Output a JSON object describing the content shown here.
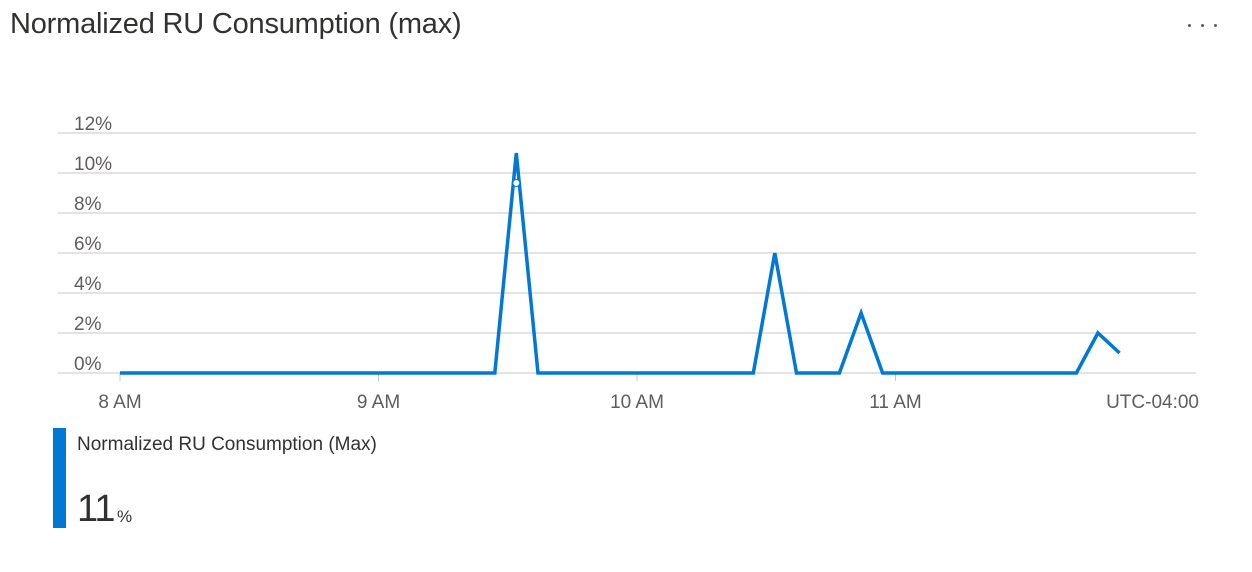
{
  "header": {
    "title": "Normalized RU Consumption (max)",
    "menu_icon": "more-horizontal-icon"
  },
  "chart_data": {
    "type": "line",
    "title": "Normalized RU Consumption (max)",
    "xlabel": "",
    "ylabel": "",
    "timezone_label": "UTC-04:00",
    "x_tick_labels": [
      "8 AM",
      "9 AM",
      "10 AM",
      "11 AM"
    ],
    "y_tick_labels": [
      "0%",
      "2%",
      "4%",
      "6%",
      "8%",
      "10%",
      "12%"
    ],
    "y_ticks": [
      0,
      2,
      4,
      6,
      8,
      10,
      12
    ],
    "ylim": [
      0,
      12
    ],
    "xlim_hours": [
      8.0,
      12.0
    ],
    "grid": true,
    "series": [
      {
        "name": "Normalized RU Consumption (Max)",
        "color": "#0078d4",
        "x_hours": [
          8.0,
          9.45,
          9.533,
          9.617,
          10.45,
          10.533,
          10.617,
          10.783,
          10.867,
          10.95,
          11.7,
          11.783,
          11.867
        ],
        "values": [
          0,
          0,
          11,
          0,
          0,
          6,
          0,
          0,
          3,
          0,
          0,
          2,
          1
        ]
      }
    ]
  },
  "legend": {
    "series_name": "Normalized RU Consumption (Max)",
    "value": "11",
    "unit": "%",
    "color": "#0078d4"
  }
}
